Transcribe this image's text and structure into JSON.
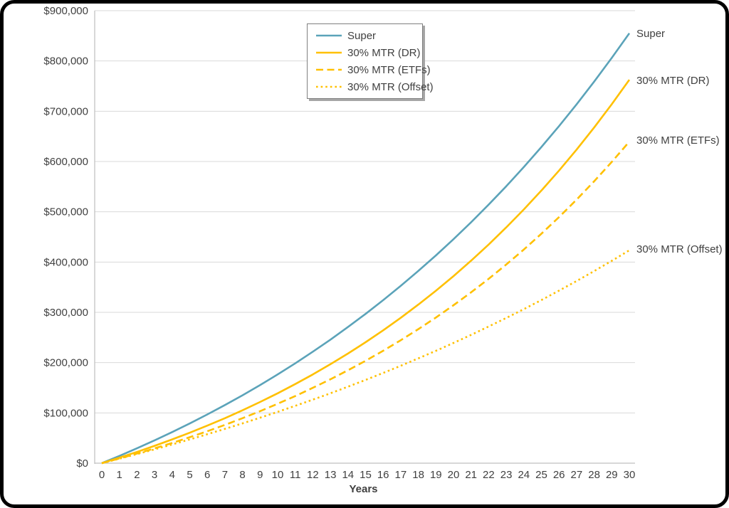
{
  "chart_data": {
    "type": "line",
    "title": "",
    "xlabel": "Years",
    "ylabel": "",
    "x": [
      0,
      1,
      2,
      3,
      4,
      5,
      6,
      7,
      8,
      9,
      10,
      11,
      12,
      13,
      14,
      15,
      16,
      17,
      18,
      19,
      20,
      21,
      22,
      23,
      24,
      25,
      26,
      27,
      28,
      29,
      30
    ],
    "xlim": [
      0,
      30
    ],
    "ylim": [
      0,
      900000
    ],
    "ytick_step": 100000,
    "ytick_labels": [
      "$0",
      "$100,000",
      "$200,000",
      "$300,000",
      "$400,000",
      "$500,000",
      "$600,000",
      "$700,000",
      "$800,000",
      "$900,000"
    ],
    "grid": "horizontal",
    "legend_position": "inside-top-center",
    "series": [
      {
        "name": "Super",
        "color": "#5BA3B9",
        "style": "solid",
        "end_value_approx": 855000,
        "values": [
          0,
          14500,
          29600,
          45400,
          61800,
          79000,
          96900,
          115600,
          135000,
          155400,
          176500,
          198600,
          221700,
          245700,
          270800,
          296900,
          324200,
          352600,
          382300,
          413200,
          445500,
          479100,
          514200,
          550800,
          589000,
          628900,
          670400,
          713700,
          758900,
          806100,
          855200
        ]
      },
      {
        "name": "30% MTR (DR)",
        "color": "#FFC000",
        "style": "solid",
        "end_value_approx": 763000,
        "values": [
          0,
          10900,
          22400,
          34500,
          47200,
          60600,
          74700,
          89500,
          105200,
          121700,
          139000,
          157300,
          176500,
          196800,
          218100,
          240600,
          264200,
          289100,
          315400,
          343000,
          372000,
          402700,
          434900,
          468900,
          504600,
          542300,
          581900,
          623600,
          667600,
          713900,
          762600
        ]
      },
      {
        "name": "30% MTR (ETFs)",
        "color": "#FFC000",
        "style": "dashed",
        "end_value_approx": 640000,
        "values": [
          0,
          9300,
          19100,
          29400,
          40200,
          51600,
          63600,
          76200,
          89400,
          103400,
          118100,
          133500,
          149800,
          166800,
          184800,
          203700,
          223600,
          244500,
          266600,
          289700,
          314100,
          339700,
          366700,
          395100,
          424900,
          456300,
          489300,
          524100,
          560600,
          599100,
          639500
        ]
      },
      {
        "name": "30% MTR (Offset)",
        "color": "#FFC000",
        "style": "dotted",
        "end_value_approx": 424000,
        "values": [
          0,
          8900,
          18100,
          27500,
          37200,
          47300,
          57600,
          68200,
          79100,
          90400,
          102000,
          114000,
          126300,
          139000,
          152100,
          165500,
          179400,
          193700,
          208400,
          223500,
          239100,
          255200,
          271800,
          288800,
          306400,
          324500,
          343100,
          362300,
          382100,
          402400,
          423400
        ]
      }
    ]
  },
  "legend": {
    "items": [
      {
        "label": "Super"
      },
      {
        "label": "30% MTR (DR)"
      },
      {
        "label": "30% MTR (ETFs)"
      },
      {
        "label": "30% MTR (Offset)"
      }
    ]
  },
  "end_labels": [
    {
      "text": "Super",
      "y": 47
    },
    {
      "text": "30% MTR (DR)",
      "y": 113
    },
    {
      "text": "30% MTR (ETFs)",
      "y": 197
    },
    {
      "text": "30% MTR (Offset)",
      "y": 350
    }
  ],
  "colors": {
    "super_line": "#5BA3B9",
    "gold_line": "#FFC000",
    "gridline": "#D9D9D9",
    "axis_line": "#BFBFBF",
    "tick_text": "#404040",
    "frame_border": "#000000"
  }
}
